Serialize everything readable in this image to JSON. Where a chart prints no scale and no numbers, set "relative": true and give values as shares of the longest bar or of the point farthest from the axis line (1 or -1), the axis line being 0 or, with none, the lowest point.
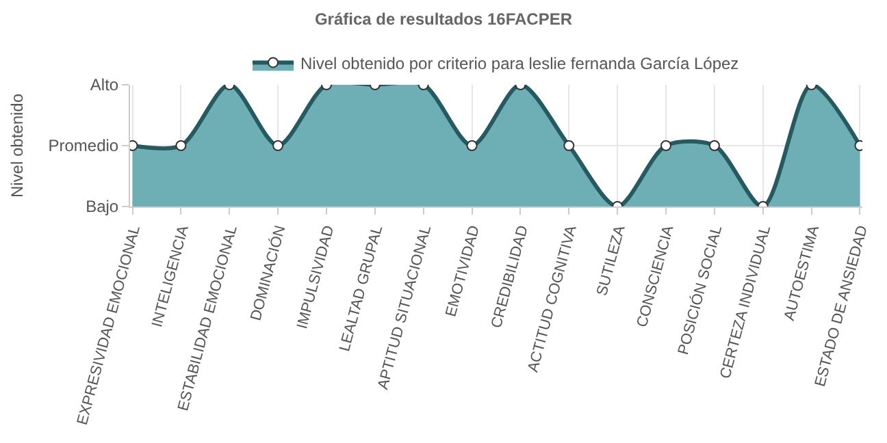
{
  "chart_data": {
    "type": "area",
    "title": "Gráfica de resultados 16FACPER",
    "ylabel": "Nivel obtenido",
    "categories": [
      "EXPRESIVIDAD EMOCIONAL",
      "INTELIGENCIA",
      "ESTABILIDAD EMOCIONAL",
      "DOMINACIÓN",
      "IMPULSIVIDAD",
      "LEALTAD GRUPAL",
      "APTITUD SITUACIONAL",
      "EMOTIVIDAD",
      "CREDIBILIDAD",
      "ACTITUD COGNITIVA",
      "SUTILEZA",
      "CONSCIENCIA",
      "POSICIÓN SOCIAL",
      "CERTEZA INDIVIDUAL",
      "AUTOESTIMA",
      "ESTADO DE ANSIEDAD"
    ],
    "series": [
      {
        "name": "Nivel obtenido por criterio para leslie fernanda García López",
        "color": "#255a60",
        "values": [
          0.5,
          0.5,
          1,
          0.5,
          1,
          1,
          1,
          0.5,
          1,
          0.5,
          0,
          0.5,
          0.5,
          0,
          1,
          0.5
        ]
      }
    ],
    "relative": true,
    "y_categories": [
      "Alto",
      "Promedio",
      "Bajo"
    ],
    "grid": true,
    "legend": "top",
    "marker": "circle",
    "line_style": "solid"
  }
}
